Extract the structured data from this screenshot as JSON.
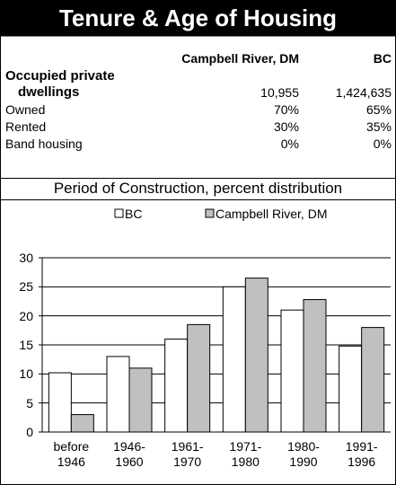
{
  "header": {
    "title": "Tenure & Age of Housing"
  },
  "table": {
    "columns": [
      "Campbell River, DM",
      "BC"
    ],
    "rows": [
      {
        "label": "Occupied private\ndwellings",
        "values": [
          "10,955",
          "1,424,635"
        ]
      },
      {
        "label": "Owned",
        "values": [
          "70%",
          "65%"
        ]
      },
      {
        "label": "Rented",
        "values": [
          "30%",
          "35%"
        ]
      },
      {
        "label": "Band housing",
        "values": [
          "0%",
          "0%"
        ]
      }
    ]
  },
  "chart_data": {
    "type": "bar",
    "title": "Period of Construction, percent distribution",
    "categories": [
      "before\n1946",
      "1946-\n1960",
      "1961-\n1970",
      "1971-\n1980",
      "1980-\n1990",
      "1991-\n1996"
    ],
    "series": [
      {
        "name": "BC",
        "color": "#ffffff",
        "values": [
          10.2,
          13,
          16,
          25,
          21,
          14.8
        ]
      },
      {
        "name": "Campbell River, DM",
        "color": "#c0c0c0",
        "values": [
          3,
          11,
          18.5,
          26.5,
          22.8,
          18
        ]
      }
    ],
    "ylim": [
      0,
      30
    ],
    "yticks": [
      0,
      5,
      10,
      15,
      20,
      25,
      30
    ],
    "grid": true
  }
}
